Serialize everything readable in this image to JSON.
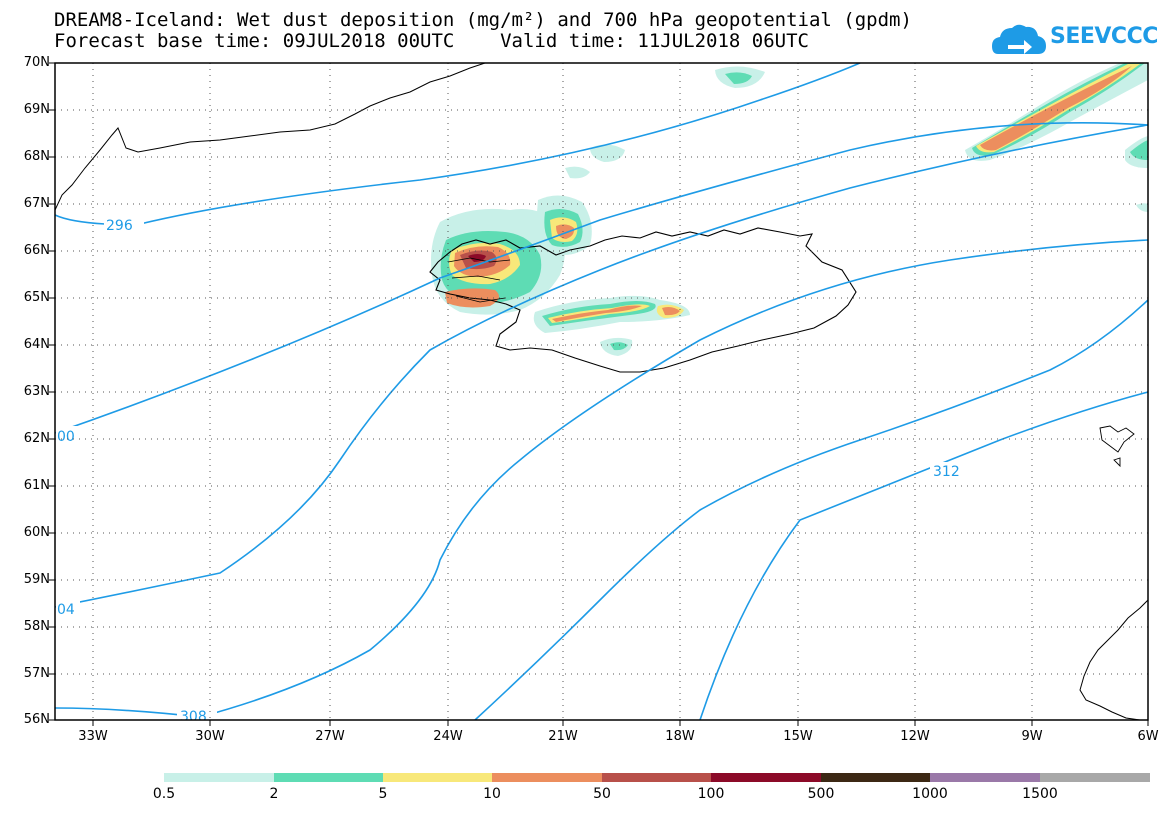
{
  "title_line1": "DREAM8-Iceland: Wet dust deposition (mg/m²) and 700 hPa geopotential (gpdm)",
  "title_line2": "Forecast base time: 09JUL2018 00UTC    Valid time: 11JUL2018 06UTC",
  "logo": {
    "text": "SEEVCCC",
    "icon": "cloud-arrow-icon",
    "color": "#1e9be6"
  },
  "latitude_labels": [
    "70N",
    "69N",
    "68N",
    "67N",
    "66N",
    "65N",
    "64N",
    "63N",
    "62N",
    "61N",
    "60N",
    "59N",
    "58N",
    "57N",
    "56N"
  ],
  "longitude_labels": [
    "33W",
    "30W",
    "27W",
    "24W",
    "21W",
    "18W",
    "15W",
    "12W",
    "9W",
    "6W"
  ],
  "contour_labels": [
    "296",
    "00",
    "04",
    "308",
    "312"
  ],
  "colorbar": {
    "colors": [
      "#c8f0e8",
      "#5edcb4",
      "#f8e87a",
      "#ec8e5e",
      "#b8504a",
      "#8c0a28",
      "#3c2814",
      "#9a78a8",
      "#a8a8a8"
    ],
    "labels": [
      "0.5",
      "2",
      "5",
      "10",
      "50",
      "100",
      "500",
      "1000",
      "1500"
    ]
  },
  "contour_color": "#1e9be6"
}
